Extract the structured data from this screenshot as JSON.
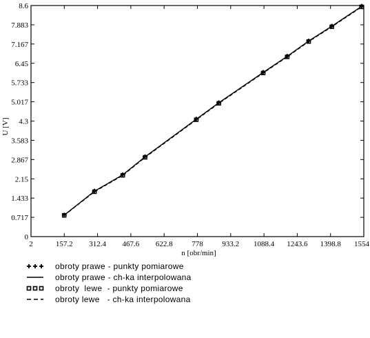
{
  "chart_data": {
    "type": "scatter",
    "xlabel": "n [obr/min]",
    "ylabel": "U [V]",
    "xlim": [
      2,
      1554
    ],
    "ylim": [
      0,
      8.6
    ],
    "xticks": [
      "2",
      "157.2",
      "312.4",
      "467.6",
      "622.8",
      "778",
      "933.2",
      "1088.4",
      "1243.6",
      "1398.8",
      "1554"
    ],
    "yticks": [
      "0",
      "0.717",
      "1.433",
      "2.15",
      "2.867",
      "3.583",
      "4.3",
      "5.017",
      "5.733",
      "6.45",
      "7.167",
      "7.883",
      "8.6"
    ],
    "grid": false,
    "legend_position": "bottom",
    "series": [
      {
        "name": "obroty prawe - punkty pomiarowe",
        "kind": "points",
        "marker": "plus",
        "x": [
          157,
          298,
          430,
          534,
          773,
          878,
          1085,
          1197,
          1297,
          1405,
          1544
        ],
        "y": [
          0.8,
          1.69,
          2.3,
          2.97,
          4.37,
          4.98,
          6.11,
          6.71,
          7.28,
          7.83,
          8.57
        ]
      },
      {
        "name": "obroty prawe - ch-ka interpolowana",
        "kind": "line",
        "dash": "solid",
        "x": [
          157,
          298,
          430,
          534,
          773,
          878,
          1085,
          1197,
          1297,
          1405,
          1544
        ],
        "y": [
          0.8,
          1.69,
          2.3,
          2.97,
          4.37,
          4.98,
          6.11,
          6.71,
          7.28,
          7.83,
          8.57
        ]
      },
      {
        "name": "obroty  lewe  - punkty pomiarowe",
        "kind": "points",
        "marker": "square",
        "x": [
          157,
          298,
          430,
          534,
          773,
          878,
          1085,
          1197,
          1297,
          1405,
          1544
        ],
        "y": [
          0.79,
          1.67,
          2.28,
          2.95,
          4.35,
          4.96,
          6.09,
          6.69,
          7.26,
          7.81,
          8.55
        ]
      },
      {
        "name": "obroty lewe   - ch-ka interpolowana",
        "kind": "line",
        "dash": "dashed",
        "x": [
          157,
          298,
          430,
          534,
          773,
          878,
          1085,
          1197,
          1297,
          1405,
          1544
        ],
        "y": [
          0.79,
          1.67,
          2.28,
          2.95,
          4.35,
          4.96,
          6.09,
          6.69,
          7.26,
          7.81,
          8.55
        ]
      }
    ]
  }
}
